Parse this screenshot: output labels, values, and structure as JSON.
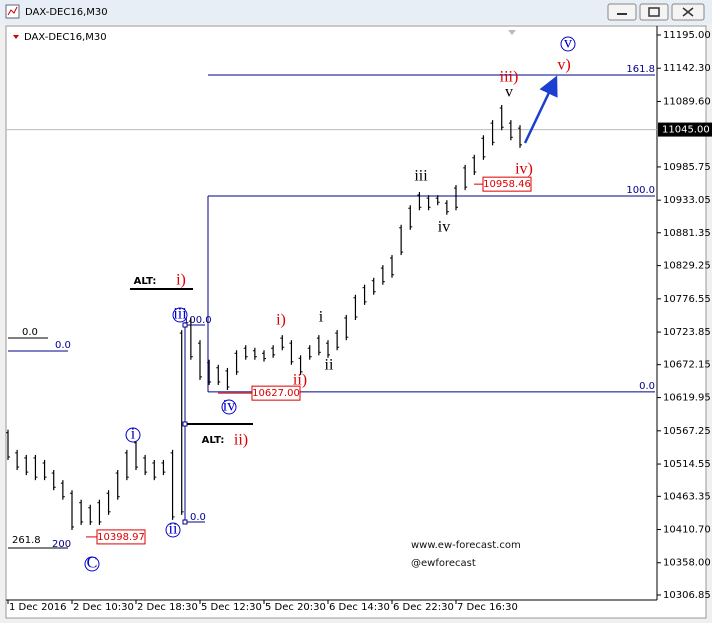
{
  "window_title": "DAX-DEC16,M30",
  "chart_data": {
    "type": "ohlc",
    "title": "DAX-DEC16,M30",
    "categories": [
      "1 Dec 2016",
      null,
      null,
      null,
      null,
      null,
      null,
      "2 Dec 10:30",
      null,
      null,
      null,
      null,
      null,
      null,
      "2 Dec 18:30",
      null,
      null,
      null,
      null,
      null,
      null,
      "5 Dec 12:30",
      null,
      null,
      null,
      null,
      null,
      null,
      "5 Dec 20:30",
      null,
      null,
      null,
      null,
      null,
      null,
      "6 Dec 14:30",
      null,
      null,
      null,
      null,
      null,
      null,
      "6 Dec 22:30",
      null,
      null,
      null,
      null,
      null,
      null,
      "7 Dec 16:30",
      null,
      null,
      null,
      null,
      null,
      null,
      null
    ],
    "high": [
      10569,
      10537,
      10529,
      10529,
      10521,
      10505,
      10489,
      10473,
      10458,
      10450,
      10458,
      10473,
      10505,
      10537,
      10553,
      10529,
      10521,
      10521,
      10537,
      10727,
      10746,
      10711,
      10680,
      10672,
      10667,
      10695,
      10703,
      10699,
      10695,
      10703,
      10719,
      10711,
      10687,
      10703,
      10719,
      10711,
      10727,
      10751,
      10783,
      10799,
      10810,
      10830,
      10846,
      10894,
      10925,
      10946,
      10941,
      10941,
      10933,
      10957,
      10989,
      11005,
      11036,
      11060,
      11084,
      11060,
      11052
    ],
    "low": [
      10521,
      10505,
      10497,
      10489,
      10489,
      10473,
      10458,
      10410,
      10418,
      10418,
      10418,
      10434,
      10458,
      10489,
      10505,
      10497,
      10489,
      10497,
      10426,
      10434,
      10680,
      10648,
      10640,
      10640,
      10632,
      10656,
      10680,
      10680,
      10677,
      10683,
      10695,
      10672,
      10656,
      10680,
      10687,
      10683,
      10695,
      10711,
      10743,
      10767,
      10783,
      10799,
      10810,
      10846,
      10886,
      10917,
      10917,
      10925,
      10910,
      10917,
      10949,
      10973,
      10997,
      11020,
      11044,
      11028,
      11016
    ],
    "color": "#000000",
    "ylim": [
      10306.85,
      11195
    ],
    "yticks": [
      {
        "value": 11195,
        "label": "11195.00"
      },
      {
        "value": 11142.3,
        "label": "11142.30"
      },
      {
        "value": 11089.6,
        "label": "11089.60"
      },
      10985.75,
      10933.05,
      10881.35,
      10829.25,
      10776.55,
      10723.85,
      10672.15,
      10619.95,
      10567.25,
      10514.55,
      10463.35,
      {
        "value": 10410.7,
        "label": "10410.70"
      },
      {
        "value": 10358,
        "label": "10358.00"
      },
      10306.85
    ],
    "last_price": {
      "value": 11045,
      "label": "11045.00"
    },
    "fib_levels": [
      {
        "label": "161.8",
        "price": 11131.6
      },
      {
        "label": "100.0",
        "price": 10939.7
      },
      {
        "label": "0.0",
        "price": 10629
      }
    ],
    "fib_color": "#00008b",
    "price_tags": [
      10958.46,
      {
        "value": 10627,
        "label": "10627.00"
      },
      10398.97
    ],
    "waves": [
      {
        "text": "C",
        "color": "#0000cc",
        "circled": true
      },
      {
        "text": "i",
        "color": "#0000cc",
        "circled": true
      },
      {
        "text": "ii",
        "color": "#0000cc",
        "circled": true
      },
      {
        "text": "iii",
        "color": "#0000cc",
        "circled": true
      },
      {
        "text": "iv",
        "color": "#0000cc",
        "circled": true
      },
      {
        "text": "v",
        "color": "#0000cc",
        "circled": true
      },
      {
        "text": "i)",
        "color": "#dd0000",
        "circled": false
      },
      {
        "text": "ii)",
        "color": "#dd0000",
        "circled": false
      },
      {
        "text": "iii)",
        "color": "#dd0000",
        "circled": false
      },
      {
        "text": "iv)",
        "color": "#dd0000",
        "circled": false
      },
      {
        "text": "v)",
        "color": "#dd0000",
        "circled": false
      },
      {
        "text": "i",
        "color": "#000000",
        "circled": false
      },
      {
        "text": "ii",
        "color": "#000000",
        "circled": false
      },
      {
        "text": "iii",
        "color": "#000000",
        "circled": false
      },
      {
        "text": "iv",
        "color": "#000000",
        "circled": false
      },
      {
        "text": "v",
        "color": "#000000",
        "circled": false
      },
      {
        "text": "ALT:",
        "color": "#000000",
        "circled": false
      },
      {
        "text": "i)",
        "color": "#dd0000",
        "circled": false
      },
      {
        "text": "ALT:",
        "color": "#000000",
        "circled": false
      },
      {
        "text": "ii)",
        "color": "#dd0000",
        "circled": false
      }
    ],
    "fib_notes": [
      "0.0",
      "0.0",
      "100.0",
      "0.0",
      "261.8",
      "200"
    ],
    "watermark": [
      "www.ew-forecast.com",
      "@ewforecast"
    ]
  }
}
